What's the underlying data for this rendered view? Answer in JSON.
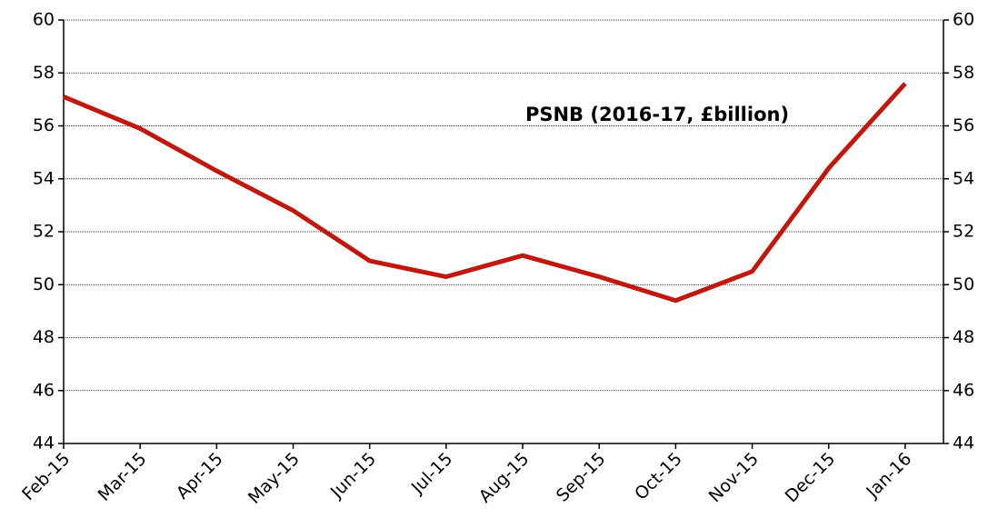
{
  "chart_data": {
    "type": "line",
    "annotation": "PSNB (2016-17, £billion)",
    "categories": [
      "Feb-15",
      "Mar-15",
      "Apr-15",
      "May-15",
      "Jun-15",
      "Jul-15",
      "Aug-15",
      "Sep-15",
      "Oct-15",
      "Nov-15",
      "Dec-15",
      "Jan-16"
    ],
    "series": [
      {
        "color": "#c0180c",
        "values": [
          57.1,
          55.9,
          54.3,
          52.8,
          50.9,
          50.3,
          51.1,
          50.3,
          49.4,
          50.5,
          54.4,
          57.6
        ]
      }
    ],
    "ylim": [
      44,
      60
    ],
    "yticks": [
      44,
      46,
      48,
      50,
      52,
      54,
      56,
      58,
      60
    ],
    "y2lim": [
      44,
      60
    ],
    "y2ticks": [
      44,
      46,
      48,
      50,
      52,
      54,
      56,
      58,
      60
    ],
    "grid": true
  }
}
